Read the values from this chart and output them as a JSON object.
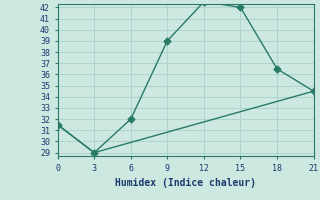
{
  "line1_x": [
    0,
    3,
    6,
    9,
    12,
    15,
    18,
    21
  ],
  "line1_y": [
    31.5,
    29,
    32,
    39,
    42.5,
    42,
    36.5,
    34.5
  ],
  "line2_x": [
    0,
    3,
    21
  ],
  "line2_y": [
    31.5,
    29,
    34.5
  ],
  "color": "#2a7a6a",
  "bg_color": "#cce8e0",
  "grid_color": "#aed4cc",
  "xlabel": "Humidex (Indice chaleur)",
  "ylim_min": 29,
  "ylim_max": 42,
  "xlim_min": 0,
  "xlim_max": 21,
  "yticks": [
    29,
    30,
    31,
    32,
    33,
    34,
    35,
    36,
    37,
    38,
    39,
    40,
    41,
    42
  ],
  "xticks": [
    0,
    3,
    6,
    9,
    12,
    15,
    18,
    21
  ],
  "markersize": 3.5,
  "linewidth": 1.0,
  "tick_fontsize": 6.0,
  "xlabel_fontsize": 7.0
}
